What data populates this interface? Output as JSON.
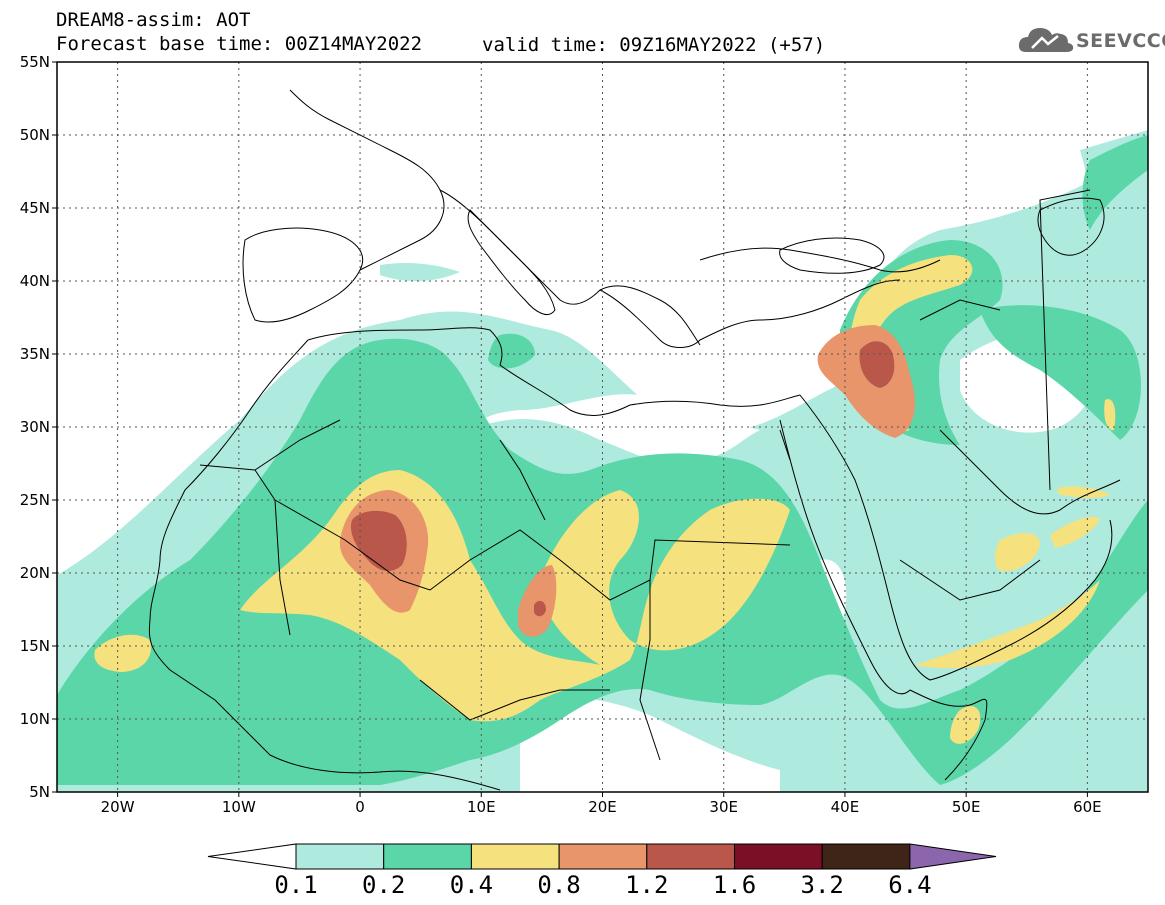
{
  "header": {
    "title_line1": "DREAM8-assim: AOT",
    "base_time": "Forecast base time: 00Z14MAY2022",
    "valid_time": "valid time: 09Z16MAY2022 (+57)",
    "logo_text": "SEEVCCC"
  },
  "map": {
    "lon_range": [
      -25,
      65
    ],
    "lat_range": [
      5,
      55
    ],
    "lat_ticks": [
      {
        "value": 55,
        "label": "55N"
      },
      {
        "value": 50,
        "label": "50N"
      },
      {
        "value": 45,
        "label": "45N"
      },
      {
        "value": 40,
        "label": "40N"
      },
      {
        "value": 35,
        "label": "35N"
      },
      {
        "value": 30,
        "label": "30N"
      },
      {
        "value": 25,
        "label": "25N"
      },
      {
        "value": 20,
        "label": "20N"
      },
      {
        "value": 15,
        "label": "15N"
      },
      {
        "value": 10,
        "label": "10N"
      },
      {
        "value": 5,
        "label": "5N"
      }
    ],
    "lon_ticks": [
      {
        "value": -20,
        "label": "20W"
      },
      {
        "value": -10,
        "label": "10W"
      },
      {
        "value": 0,
        "label": "0"
      },
      {
        "value": 10,
        "label": "10E"
      },
      {
        "value": 20,
        "label": "20E"
      },
      {
        "value": 30,
        "label": "30E"
      },
      {
        "value": 40,
        "label": "40E"
      },
      {
        "value": 50,
        "label": "50E"
      },
      {
        "value": 60,
        "label": "60E"
      }
    ],
    "gridlines": "dotted"
  },
  "colorbar": {
    "labels": [
      "0.1",
      "0.2",
      "0.4",
      "0.8",
      "1.2",
      "1.6",
      "3.2",
      "6.4"
    ],
    "colors": [
      "#ffffff",
      "#aeeadd",
      "#5ad6a9",
      "#f5e27e",
      "#e8956b",
      "#b9584a",
      "#7a0f26",
      "#3e2518",
      "#8b66ad"
    ]
  }
}
